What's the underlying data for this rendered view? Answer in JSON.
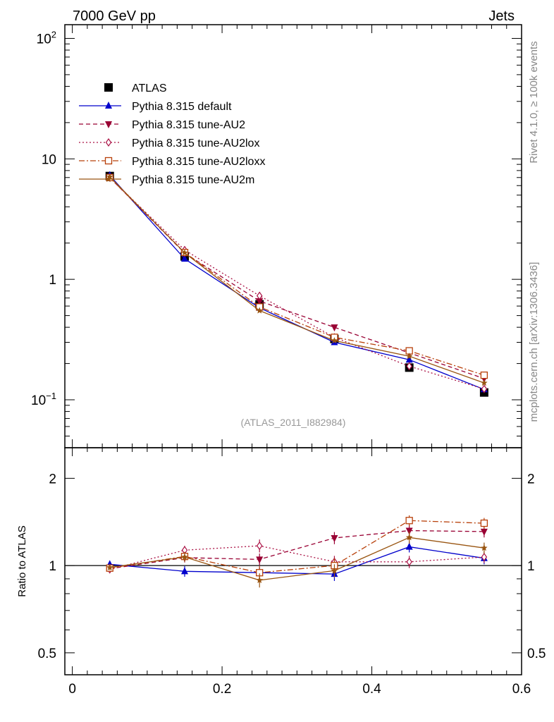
{
  "header": {
    "left": "7000 GeV pp",
    "right": "Jets"
  },
  "side_labels": {
    "rivet": "Rivet 4.1.0, ≥ 100k events",
    "mcplots": "mcplots.cern.ch [arXiv:1306.3436]"
  },
  "analysis_label": "(ATLAS_2011_I882984)",
  "colors": {
    "atlas": "#000000",
    "default": "#0000cc",
    "au2": "#990033",
    "au2lox": "#aa1144",
    "au2loxx": "#b8400a",
    "au2m": "#995511"
  },
  "chart_data": [
    {
      "type": "line",
      "panel": "main",
      "yscale": "log",
      "xlim": [
        -0.01,
        0.6
      ],
      "ylim": [
        0.04,
        130
      ],
      "xlabel": "",
      "ylabel": "",
      "yticks": [
        {
          "value": 0.1,
          "base": "10",
          "exp": "−1"
        },
        {
          "value": 1,
          "label": "1"
        },
        {
          "value": 10,
          "label": "10"
        },
        {
          "value": 100,
          "base": "10",
          "exp": "2"
        }
      ],
      "x": [
        0.05,
        0.15,
        0.25,
        0.35,
        0.45,
        0.55
      ],
      "series": [
        {
          "key": "atlas",
          "name": "ATLAS",
          "marker": "square",
          "style": "none",
          "values": [
            7.2,
            1.55,
            0.62,
            0.32,
            0.185,
            0.115
          ]
        },
        {
          "key": "default",
          "name": "Pythia 8.315 default",
          "marker": "triangle-up",
          "style": "solid",
          "values": [
            7.3,
            1.48,
            0.58,
            0.3,
            0.215,
            0.122
          ]
        },
        {
          "key": "au2",
          "name": "Pythia 8.315 tune-AU2",
          "marker": "triangle-down",
          "style": "dash",
          "values": [
            7.0,
            1.65,
            0.66,
            0.4,
            0.245,
            0.15
          ]
        },
        {
          "key": "au2lox",
          "name": "Pythia 8.315 tune-AU2lox",
          "marker": "diamond-open",
          "style": "dot",
          "values": [
            7.0,
            1.75,
            0.73,
            0.33,
            0.19,
            0.123
          ]
        },
        {
          "key": "au2loxx",
          "name": "Pythia 8.315 tune-AU2loxx",
          "marker": "square-open",
          "style": "dashdot",
          "values": [
            7.0,
            1.67,
            0.59,
            0.33,
            0.255,
            0.16
          ]
        },
        {
          "key": "au2m",
          "name": "Pythia 8.315 tune-AU2m",
          "marker": "star",
          "style": "solid",
          "values": [
            7.1,
            1.66,
            0.55,
            0.31,
            0.23,
            0.138
          ]
        }
      ]
    },
    {
      "type": "line",
      "panel": "ratio",
      "yscale": "log",
      "xlim": [
        -0.01,
        0.6
      ],
      "ylim": [
        0.42,
        2.55
      ],
      "ylabel": "Ratio to ATLAS",
      "yticks": [
        {
          "value": 0.5,
          "label": "0.5"
        },
        {
          "value": 1,
          "label": "1"
        },
        {
          "value": 2,
          "label": "2"
        }
      ],
      "xticks": [
        {
          "value": 0,
          "label": "0"
        },
        {
          "value": 0.2,
          "label": "0.2"
        },
        {
          "value": 0.4,
          "label": "0.4"
        },
        {
          "value": 0.6,
          "label": "0.6"
        }
      ],
      "reference": 1,
      "x": [
        0.05,
        0.15,
        0.25,
        0.35,
        0.45,
        0.55
      ],
      "series": [
        {
          "key": "default",
          "name": "Pythia 8.315 default",
          "marker": "triangle-up",
          "style": "solid",
          "values": [
            1.01,
            0.955,
            0.945,
            0.935,
            1.16,
            1.06
          ],
          "errors": [
            0.02,
            0.04,
            0.04,
            0.05,
            0.05,
            0.05
          ]
        },
        {
          "key": "au2",
          "name": "Pythia 8.315 tune-AU2",
          "marker": "triangle-down",
          "style": "dash",
          "values": [
            0.975,
            1.065,
            1.05,
            1.245,
            1.32,
            1.31
          ],
          "errors": [
            0.02,
            0.04,
            0.05,
            0.06,
            0.06,
            0.06
          ]
        },
        {
          "key": "au2lox",
          "name": "Pythia 8.315 tune-AU2lox",
          "marker": "diamond-open",
          "style": "dot",
          "values": [
            0.97,
            1.13,
            1.17,
            1.03,
            1.03,
            1.07
          ],
          "errors": [
            0.02,
            0.04,
            0.06,
            0.05,
            0.05,
            0.05
          ]
        },
        {
          "key": "au2loxx",
          "name": "Pythia 8.315 tune-AU2loxx",
          "marker": "square-open",
          "style": "dashdot",
          "values": [
            0.98,
            1.075,
            0.945,
            1.0,
            1.43,
            1.4
          ],
          "errors": [
            0.02,
            0.04,
            0.05,
            0.06,
            0.06,
            0.06
          ]
        },
        {
          "key": "au2m",
          "name": "Pythia 8.315 tune-AU2m",
          "marker": "star",
          "style": "solid",
          "values": [
            0.985,
            1.07,
            0.89,
            0.96,
            1.25,
            1.15
          ],
          "errors": [
            0.02,
            0.04,
            0.05,
            0.05,
            0.06,
            0.05
          ]
        }
      ]
    }
  ]
}
